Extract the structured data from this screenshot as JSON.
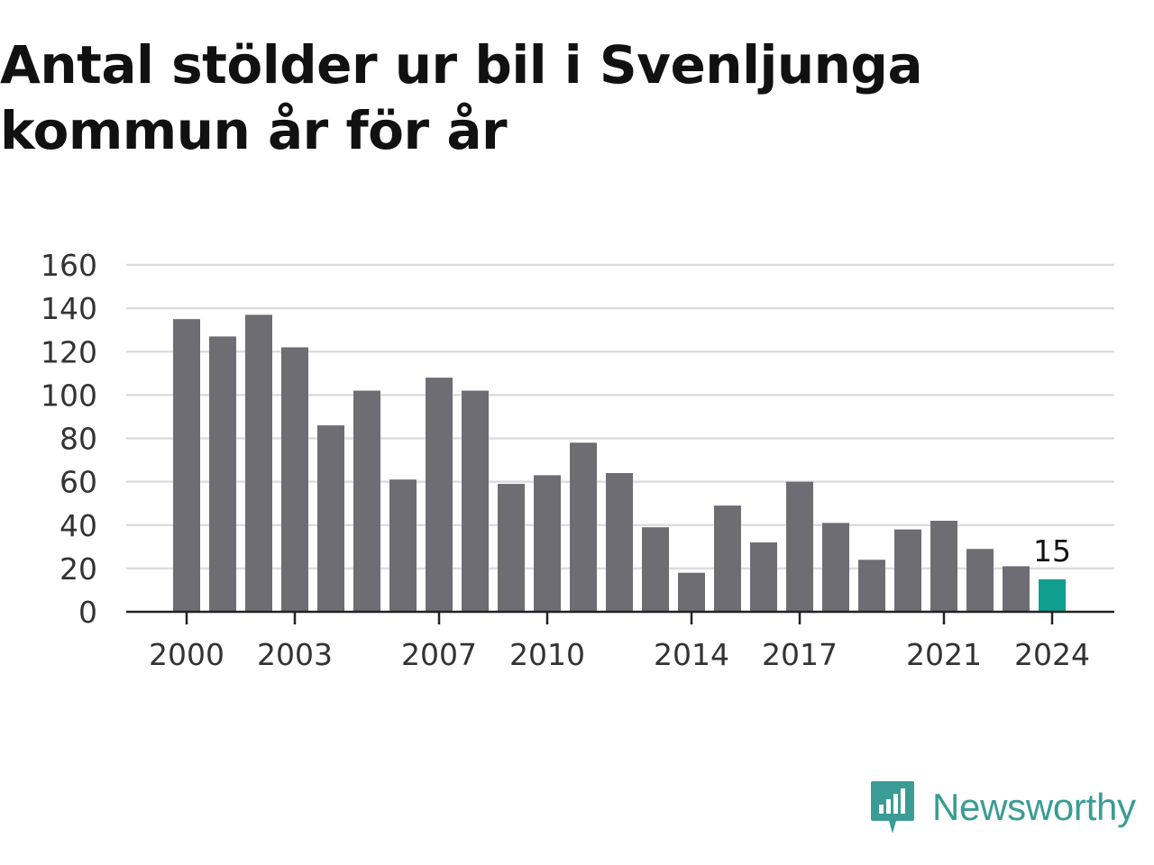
{
  "chart_data": {
    "type": "bar",
    "title": "Antal stölder ur bil i Svenljunga kommun år för år",
    "xlabel": "",
    "ylabel": "",
    "categories": [
      "2000",
      "2001",
      "2002",
      "2003",
      "2004",
      "2005",
      "2006",
      "2007",
      "2008",
      "2009",
      "2010",
      "2011",
      "2012",
      "2013",
      "2014",
      "2015",
      "2016",
      "2017",
      "2018",
      "2019",
      "2020",
      "2021",
      "2022",
      "2023",
      "2024"
    ],
    "values": [
      135,
      127,
      137,
      122,
      86,
      102,
      61,
      108,
      102,
      59,
      63,
      78,
      64,
      39,
      18,
      49,
      32,
      60,
      41,
      24,
      38,
      42,
      29,
      21,
      15
    ],
    "ylim": [
      0,
      160
    ],
    "yticks": [
      "0",
      "20",
      "40",
      "60",
      "80",
      "100",
      "120",
      "140",
      "160"
    ],
    "xticks_labeled": [
      "2000",
      "2003",
      "2007",
      "2010",
      "2014",
      "2017",
      "2021",
      "2024"
    ],
    "highlight": {
      "category": "2024",
      "label": "15"
    },
    "grid": true,
    "colors": {
      "bar": "#6e6d73",
      "highlight": "#0f9e8f",
      "grid": "#dddddd",
      "axis": "#222222"
    }
  },
  "brand": {
    "name": "Newsworthy",
    "icon": "newsworthy-logo-icon",
    "color": "#3a9c94"
  }
}
